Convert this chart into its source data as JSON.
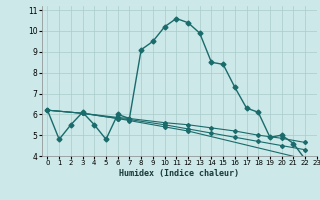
{
  "title": "",
  "xlabel": "Humidex (Indice chaleur)",
  "bg_color": "#cce8e8",
  "grid_color": "#aacccc",
  "line_color": "#1a6b6b",
  "xlim": [
    -0.5,
    23
  ],
  "ylim": [
    4,
    11.2
  ],
  "yticks": [
    4,
    5,
    6,
    7,
    8,
    9,
    10,
    11
  ],
  "xticks": [
    0,
    1,
    2,
    3,
    4,
    5,
    6,
    7,
    8,
    9,
    10,
    11,
    12,
    13,
    14,
    15,
    16,
    17,
    18,
    19,
    20,
    21,
    22,
    23
  ],
  "line1": {
    "x": [
      0,
      1,
      2,
      3,
      4,
      5,
      6,
      7,
      8,
      9,
      10,
      11,
      12,
      13,
      14,
      15,
      16,
      17,
      18,
      19,
      20,
      21,
      22
    ],
    "y": [
      6.2,
      4.8,
      5.5,
      6.1,
      5.5,
      4.8,
      6.0,
      5.8,
      9.1,
      9.5,
      10.2,
      10.6,
      10.4,
      9.9,
      8.5,
      8.4,
      7.3,
      6.3,
      6.1,
      4.9,
      5.0,
      4.6,
      3.85
    ]
  },
  "line2": {
    "x": [
      0,
      3,
      6,
      7,
      10,
      12,
      14,
      16,
      18,
      20,
      22
    ],
    "y": [
      6.2,
      6.05,
      5.85,
      5.8,
      5.6,
      5.5,
      5.35,
      5.2,
      5.0,
      4.85,
      4.65
    ]
  },
  "line3": {
    "x": [
      0,
      3,
      6,
      7,
      10,
      12,
      14,
      16,
      18,
      20,
      22
    ],
    "y": [
      6.2,
      6.05,
      5.8,
      5.75,
      5.5,
      5.3,
      5.1,
      4.9,
      4.7,
      4.5,
      4.3
    ]
  },
  "line4": {
    "x": [
      0,
      3,
      6,
      7,
      10,
      12,
      22
    ],
    "y": [
      6.2,
      6.05,
      5.8,
      5.7,
      5.4,
      5.2,
      3.85
    ]
  }
}
